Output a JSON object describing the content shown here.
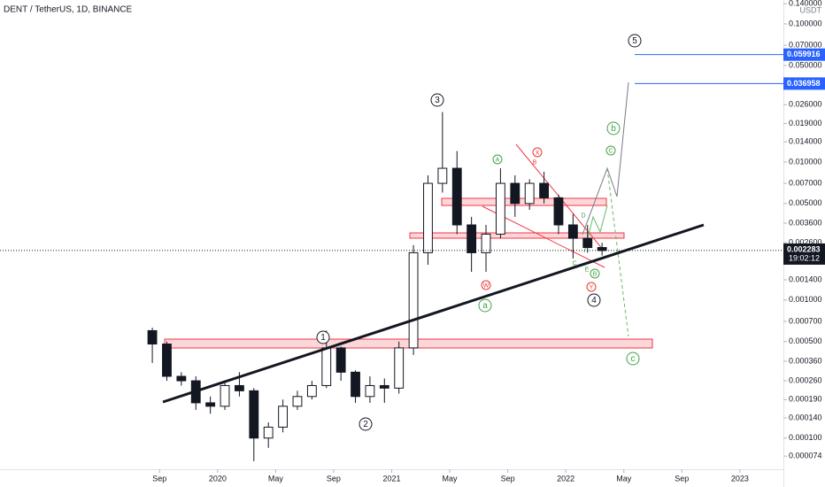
{
  "chart_data": {
    "type": "candlestick",
    "title": "DENT / TetherUS, 1D, BINANCE",
    "currency": "USDT",
    "log_scale": true,
    "color": "#131722",
    "categories": [
      "2019-08",
      "2019-09",
      "2019-10",
      "2019-11",
      "2019-12",
      "2020-01",
      "2020-02",
      "2020-03",
      "2020-04",
      "2020-05",
      "2020-06",
      "2020-07",
      "2020-08",
      "2020-09",
      "2020-10",
      "2020-11",
      "2020-12",
      "2021-01",
      "2021-02",
      "2021-03",
      "2021-04",
      "2021-05",
      "2021-06",
      "2021-07",
      "2021-08",
      "2021-09",
      "2021-10",
      "2021-11",
      "2021-12",
      "2022-01",
      "2022-02",
      "2022-03"
    ],
    "open": [
      0.0006,
      0.00048,
      0.00028,
      0.00026,
      0.00018,
      0.00017,
      0.00024,
      0.00022,
      0.0001,
      0.00012,
      0.00017,
      0.0002,
      0.00024,
      0.00045,
      0.0003,
      0.0002,
      0.00024,
      0.00023,
      0.00045,
      0.0022,
      0.007,
      0.009,
      0.0035,
      0.0022,
      0.003,
      0.007,
      0.005,
      0.007,
      0.0055,
      0.0035,
      0.0028,
      0.0024
    ],
    "high": [
      0.00063,
      0.0005,
      0.0003,
      0.00028,
      0.0002,
      0.00026,
      0.0003,
      0.00023,
      0.00013,
      0.00019,
      0.00022,
      0.00026,
      0.0006,
      0.00046,
      0.00031,
      0.00028,
      0.00027,
      0.0005,
      0.0025,
      0.008,
      0.023,
      0.012,
      0.004,
      0.0035,
      0.009,
      0.008,
      0.0075,
      0.0085,
      0.0058,
      0.0042,
      0.0035,
      0.0026
    ],
    "low": [
      0.00035,
      0.00026,
      0.00024,
      0.00016,
      0.00015,
      0.00016,
      0.0002,
      6.8e-05,
      8.5e-05,
      0.00011,
      0.00016,
      0.00019,
      0.00023,
      0.00026,
      0.00018,
      0.00018,
      0.00018,
      0.00021,
      0.0004,
      0.0018,
      0.006,
      0.003,
      0.0016,
      0.0016,
      0.0028,
      0.004,
      0.0045,
      0.005,
      0.003,
      0.002,
      0.0022,
      0.0021
    ],
    "close": [
      0.00048,
      0.00028,
      0.00026,
      0.00018,
      0.00017,
      0.00024,
      0.00022,
      0.0001,
      0.00012,
      0.00017,
      0.0002,
      0.00024,
      0.00045,
      0.0003,
      0.0002,
      0.00024,
      0.00023,
      0.00045,
      0.0022,
      0.007,
      0.009,
      0.0035,
      0.0022,
      0.003,
      0.007,
      0.005,
      0.007,
      0.0055,
      0.0035,
      0.0028,
      0.0024,
      0.002283
    ],
    "xlim": [
      "2018-10",
      "2023-04"
    ],
    "xticks": [
      {
        "value": "2019-09",
        "label": "Sep"
      },
      {
        "value": "2020-01",
        "label": "2020"
      },
      {
        "value": "2020-05",
        "label": "May"
      },
      {
        "value": "2020-09",
        "label": "Sep"
      },
      {
        "value": "2021-01",
        "label": "2021"
      },
      {
        "value": "2021-05",
        "label": "May"
      },
      {
        "value": "2021-09",
        "label": "Sep"
      },
      {
        "value": "2022-01",
        "label": "2022"
      },
      {
        "value": "2022-05",
        "label": "May"
      },
      {
        "value": "2022-09",
        "label": "Sep"
      },
      {
        "value": "2023-01",
        "label": "2023"
      }
    ],
    "ylim": [
      5.94e-05,
      0.149
    ],
    "yticks": [
      {
        "value": 7.4e-05,
        "label": "0.000074"
      },
      {
        "value": 0.0001,
        "label": "0.000100"
      },
      {
        "value": 0.00014,
        "label": "0.000140"
      },
      {
        "value": 0.00019,
        "label": "0.000190"
      },
      {
        "value": 0.00026,
        "label": "0.000260"
      },
      {
        "value": 0.00036,
        "label": "0.000360"
      },
      {
        "value": 0.0005,
        "label": "0.000500"
      },
      {
        "value": 0.0007,
        "label": "0.000700"
      },
      {
        "value": 0.001,
        "label": "0.001000"
      },
      {
        "value": 0.0014,
        "label": "0.001400"
      },
      {
        "value": 0.0026,
        "label": "0.002600"
      },
      {
        "value": 0.0036,
        "label": "0.003600"
      },
      {
        "value": 0.005,
        "label": "0.005000"
      },
      {
        "value": 0.007,
        "label": "0.007000"
      },
      {
        "value": 0.01,
        "label": "0.010000"
      },
      {
        "value": 0.014,
        "label": "0.014000"
      },
      {
        "value": 0.019,
        "label": "0.019000"
      },
      {
        "value": 0.026,
        "label": "0.026000"
      },
      {
        "value": 0.05,
        "label": "0.050000"
      },
      {
        "value": 0.07,
        "label": "0.070000"
      },
      {
        "value": 0.1,
        "label": "0.100000"
      },
      {
        "value": 0.14,
        "label": "0.140000"
      }
    ],
    "last_price": 0.002283,
    "countdown": "19:02:12",
    "levels": [
      0.059916,
      0.036958
    ],
    "annotations": [
      {
        "text": "1",
        "color": "#131722",
        "circle": true
      },
      {
        "text": "2",
        "color": "#131722",
        "circle": true
      },
      {
        "text": "3",
        "color": "#131722",
        "circle": true
      },
      {
        "text": "4",
        "color": "#131722",
        "circle": true
      },
      {
        "text": "5",
        "color": "#131722",
        "circle": true
      },
      {
        "text": "a",
        "color": "#43a047",
        "circle": true
      },
      {
        "text": "b",
        "color": "#43a047",
        "circle": true
      },
      {
        "text": "c",
        "color": "#43a047",
        "circle": true
      },
      {
        "text": "A",
        "color": "#43a047",
        "circle": true
      },
      {
        "text": "B",
        "color": "#43a047",
        "circle": true
      },
      {
        "text": "C",
        "color": "#43a047",
        "circle": true
      },
      {
        "text": "W",
        "color": "#e53935",
        "circle": true
      },
      {
        "text": "X",
        "color": "#e53935",
        "circle": true
      },
      {
        "text": "Y",
        "color": "#e53935",
        "circle": true
      },
      {
        "text": "B",
        "color": "#e53935",
        "circle": false
      },
      {
        "text": "C",
        "color": "#43a047",
        "circle": false
      },
      {
        "text": "D",
        "color": "#43a047",
        "circle": false
      },
      {
        "text": "E",
        "color": "#43a047",
        "circle": false
      }
    ]
  }
}
